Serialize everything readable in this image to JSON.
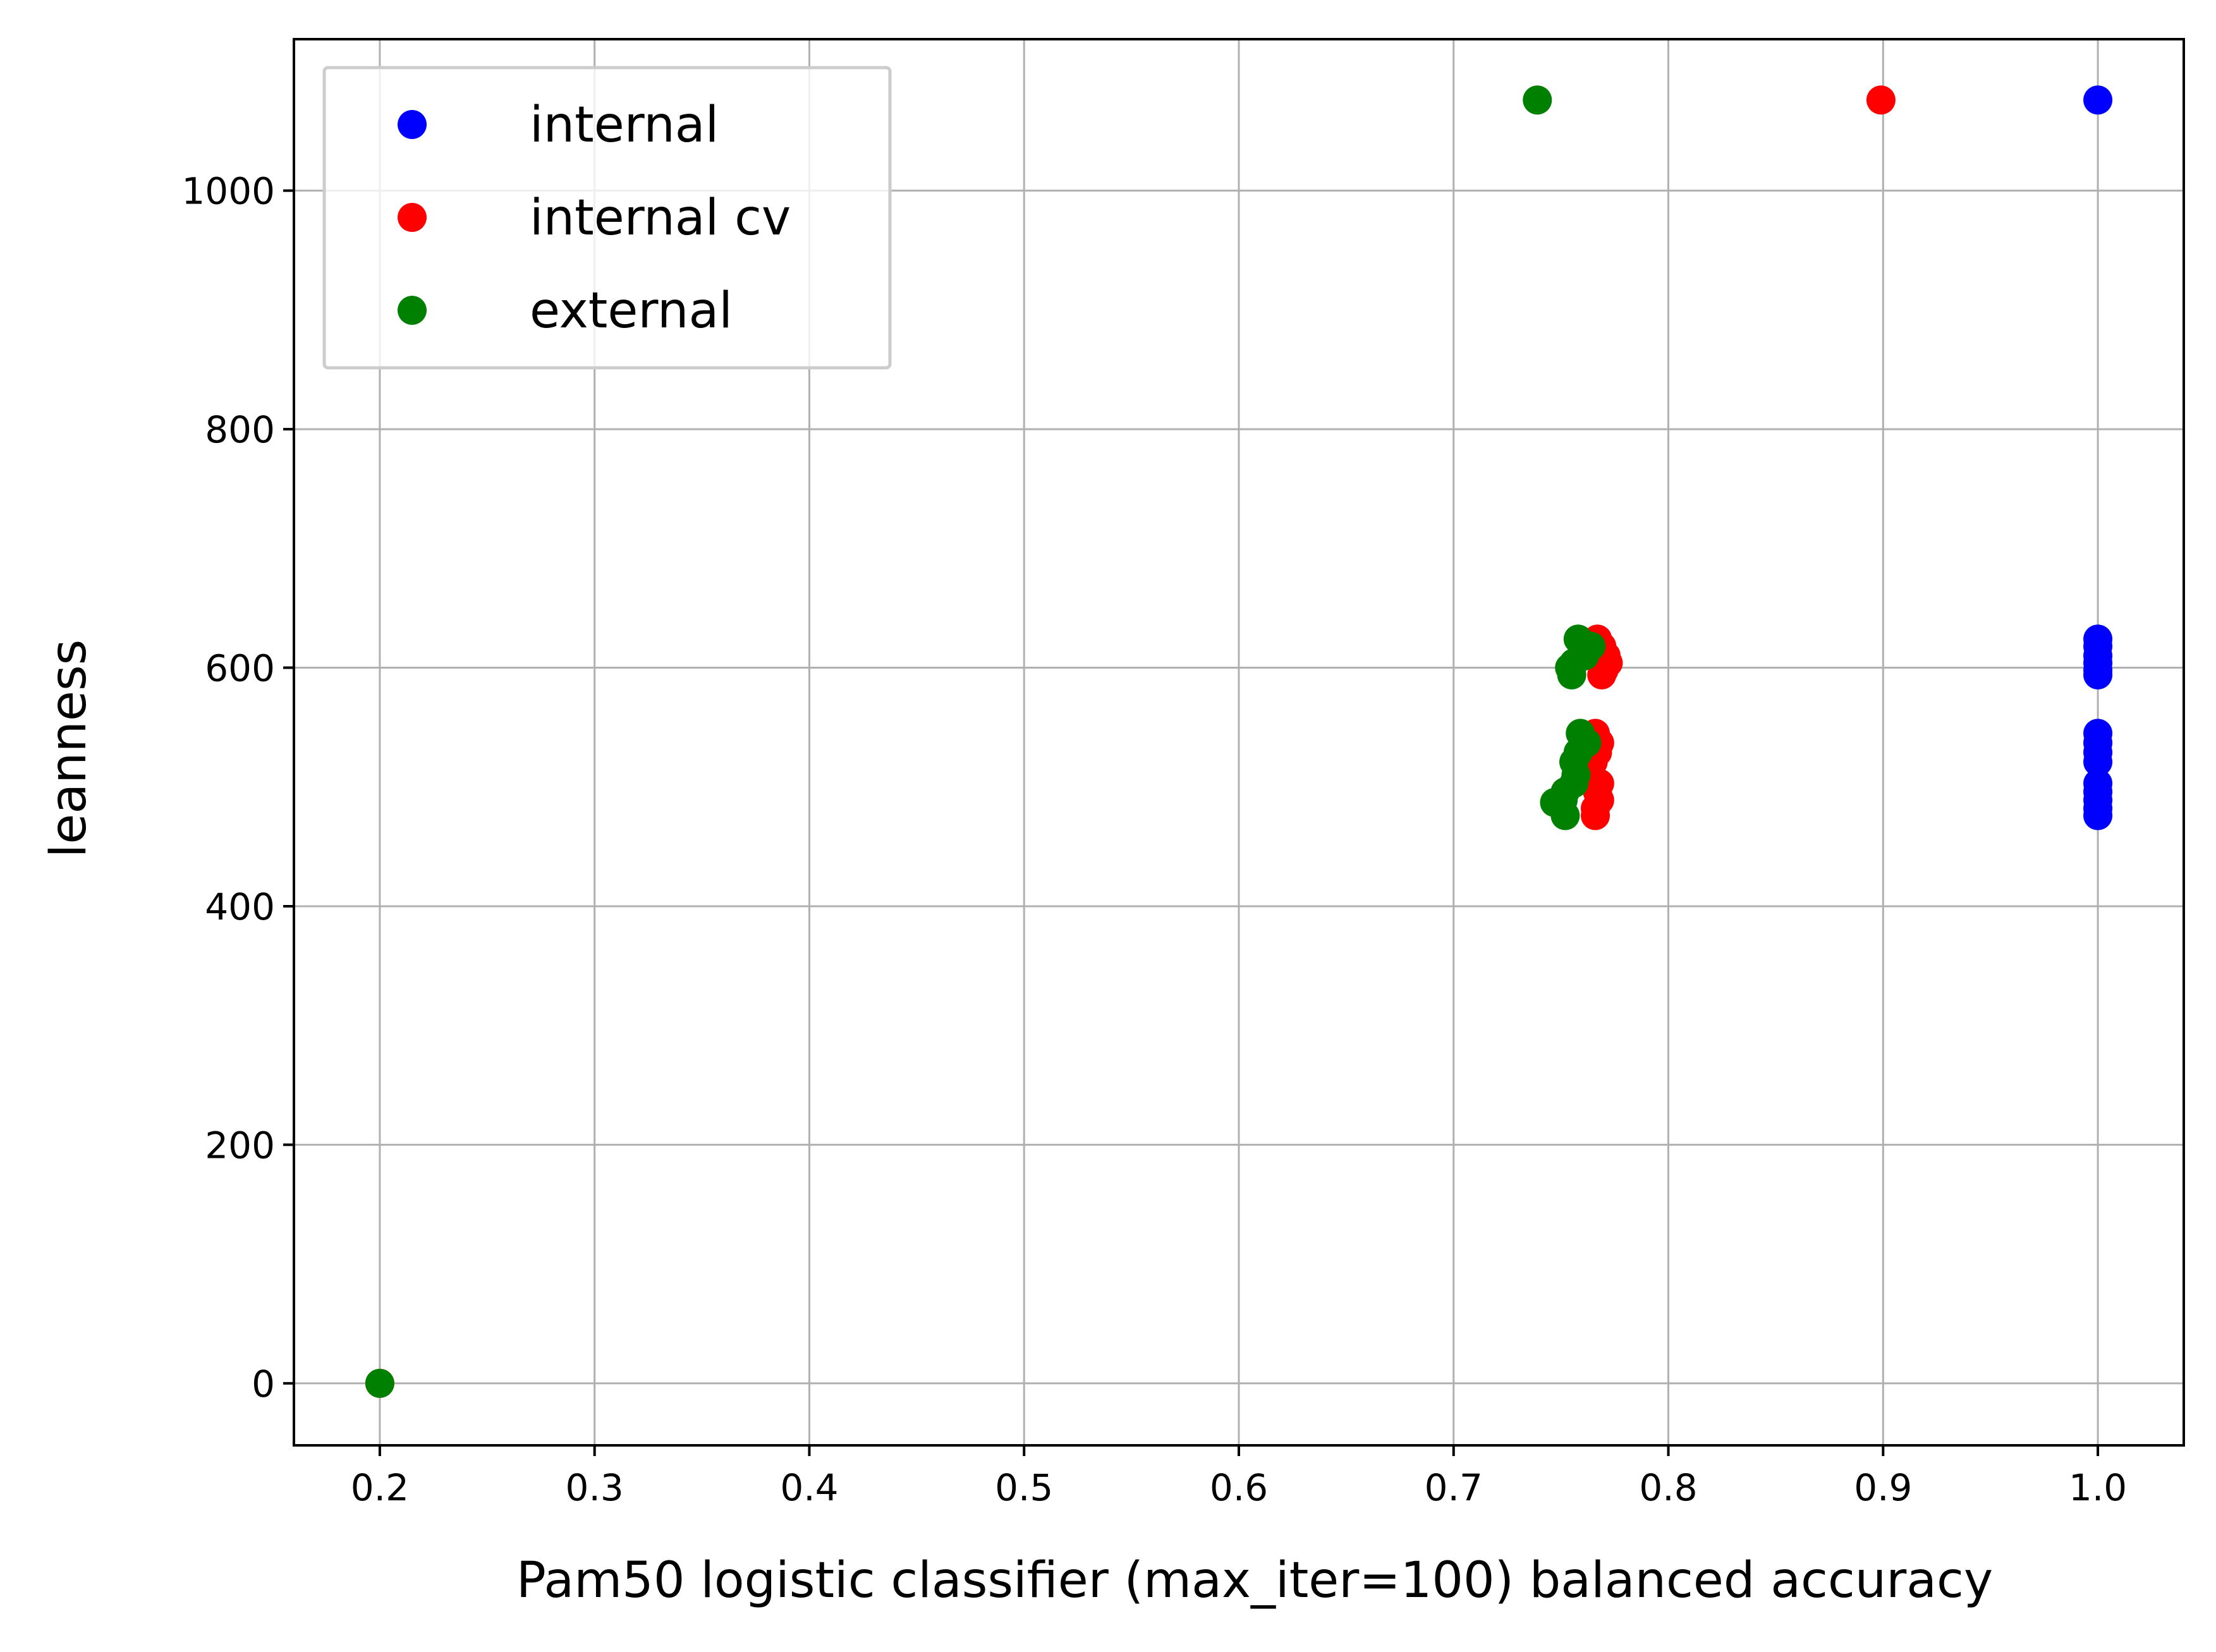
{
  "chart_data": {
    "type": "scatter",
    "xlabel": "Pam50 logistic classifier (max_iter=100) balanced accuracy",
    "ylabel": "leanness",
    "xlim": [
      0.16,
      1.04
    ],
    "ylim": [
      -52,
      1127
    ],
    "xticks": [
      0.2,
      0.3,
      0.4,
      0.5,
      0.6,
      0.7,
      0.8,
      0.9,
      1.0
    ],
    "xtick_labels": [
      "0.2",
      "0.3",
      "0.4",
      "0.5",
      "0.6",
      "0.7",
      "0.8",
      "0.9",
      "1.0"
    ],
    "yticks": [
      0,
      200,
      400,
      600,
      800,
      1000
    ],
    "ytick_labels": [
      "0",
      "200",
      "400",
      "600",
      "800",
      "1000"
    ],
    "grid": true,
    "legend_position": "top-left",
    "series": [
      {
        "name": "internal",
        "color": "#0000ff",
        "points": [
          {
            "x": 1.0,
            "y": 1076
          },
          {
            "x": 1.0,
            "y": 624
          },
          {
            "x": 1.0,
            "y": 618
          },
          {
            "x": 1.0,
            "y": 610
          },
          {
            "x": 1.0,
            "y": 604
          },
          {
            "x": 1.0,
            "y": 598
          },
          {
            "x": 1.0,
            "y": 594
          },
          {
            "x": 1.0,
            "y": 545
          },
          {
            "x": 1.0,
            "y": 537
          },
          {
            "x": 1.0,
            "y": 529
          },
          {
            "x": 1.0,
            "y": 521
          },
          {
            "x": 1.0,
            "y": 503
          },
          {
            "x": 1.0,
            "y": 496
          },
          {
            "x": 1.0,
            "y": 489
          },
          {
            "x": 1.0,
            "y": 482
          },
          {
            "x": 1.0,
            "y": 476
          }
        ]
      },
      {
        "name": "internal cv",
        "color": "#ff0000",
        "points": [
          {
            "x": 0.899,
            "y": 1076
          },
          {
            "x": 0.767,
            "y": 624
          },
          {
            "x": 0.769,
            "y": 618
          },
          {
            "x": 0.771,
            "y": 610
          },
          {
            "x": 0.772,
            "y": 604
          },
          {
            "x": 0.77,
            "y": 598
          },
          {
            "x": 0.769,
            "y": 594
          },
          {
            "x": 0.766,
            "y": 545
          },
          {
            "x": 0.768,
            "y": 537
          },
          {
            "x": 0.767,
            "y": 529
          },
          {
            "x": 0.765,
            "y": 521
          },
          {
            "x": 0.768,
            "y": 503
          },
          {
            "x": 0.767,
            "y": 496
          },
          {
            "x": 0.768,
            "y": 489
          },
          {
            "x": 0.766,
            "y": 482
          },
          {
            "x": 0.766,
            "y": 476
          },
          {
            "x": 0.2,
            "y": 0
          }
        ]
      },
      {
        "name": "external",
        "color": "#008000",
        "points": [
          {
            "x": 0.739,
            "y": 1076
          },
          {
            "x": 0.758,
            "y": 624
          },
          {
            "x": 0.764,
            "y": 618
          },
          {
            "x": 0.761,
            "y": 610
          },
          {
            "x": 0.756,
            "y": 604
          },
          {
            "x": 0.754,
            "y": 600
          },
          {
            "x": 0.755,
            "y": 594
          },
          {
            "x": 0.759,
            "y": 545
          },
          {
            "x": 0.762,
            "y": 537
          },
          {
            "x": 0.758,
            "y": 529
          },
          {
            "x": 0.756,
            "y": 521
          },
          {
            "x": 0.757,
            "y": 510
          },
          {
            "x": 0.756,
            "y": 503
          },
          {
            "x": 0.752,
            "y": 496
          },
          {
            "x": 0.751,
            "y": 489
          },
          {
            "x": 0.747,
            "y": 487
          },
          {
            "x": 0.752,
            "y": 476
          },
          {
            "x": 0.2,
            "y": 0
          }
        ]
      }
    ]
  }
}
